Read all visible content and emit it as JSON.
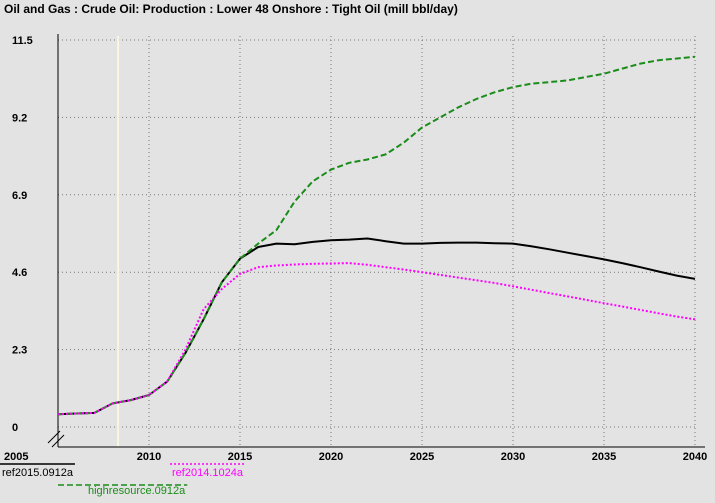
{
  "title": "Oil and Gas : Crude Oil: Production : Lower 48 Onshore : Tight Oil (mill bbl/day)",
  "chart_data": {
    "type": "line",
    "title": "Oil and Gas : Crude Oil: Production : Lower 48 Onshore : Tight Oil (mill bbl/day)",
    "xlabel": "",
    "ylabel": "",
    "xlim": [
      2005,
      2040
    ],
    "ylim": [
      0,
      11.5
    ],
    "x_ticks": [
      "2005",
      "2010",
      "2015",
      "2020",
      "2025",
      "2030",
      "2035",
      "2040"
    ],
    "y_ticks": [
      "0",
      "2.3",
      "4.6",
      "6.9",
      "9.2",
      "11.5"
    ],
    "grid": true,
    "background": "#e3e3e3",
    "reference_line_x": 2008.3,
    "series": [
      {
        "name": "ref2015.0912a",
        "color": "#000000",
        "style": "solid",
        "x": [
          2005,
          2006,
          2007,
          2008,
          2009,
          2010,
          2011,
          2012,
          2013,
          2014,
          2015,
          2016,
          2017,
          2018,
          2019,
          2020,
          2021,
          2022,
          2023,
          2024,
          2025,
          2026,
          2027,
          2028,
          2029,
          2030,
          2031,
          2032,
          2033,
          2034,
          2035,
          2036,
          2037,
          2038,
          2039,
          2040
        ],
        "values": [
          0.38,
          0.4,
          0.42,
          0.7,
          0.8,
          0.95,
          1.35,
          2.2,
          3.2,
          4.3,
          5.0,
          5.35,
          5.45,
          5.43,
          5.5,
          5.55,
          5.57,
          5.6,
          5.52,
          5.45,
          5.45,
          5.47,
          5.48,
          5.48,
          5.46,
          5.45,
          5.37,
          5.28,
          5.18,
          5.08,
          4.98,
          4.87,
          4.75,
          4.62,
          4.5,
          4.4
        ]
      },
      {
        "name": "highresource.0912a",
        "color": "#1a8c1a",
        "style": "dashed",
        "x": [
          2005,
          2006,
          2007,
          2008,
          2009,
          2010,
          2011,
          2012,
          2013,
          2014,
          2015,
          2016,
          2017,
          2018,
          2019,
          2020,
          2021,
          2022,
          2023,
          2024,
          2025,
          2026,
          2027,
          2028,
          2029,
          2030,
          2031,
          2032,
          2033,
          2034,
          2035,
          2036,
          2037,
          2038,
          2039,
          2040
        ],
        "values": [
          0.38,
          0.4,
          0.42,
          0.7,
          0.8,
          0.95,
          1.35,
          2.2,
          3.2,
          4.3,
          5.0,
          5.45,
          5.85,
          6.7,
          7.3,
          7.65,
          7.85,
          7.95,
          8.1,
          8.45,
          8.9,
          9.2,
          9.5,
          9.75,
          9.95,
          10.1,
          10.2,
          10.25,
          10.3,
          10.4,
          10.5,
          10.65,
          10.8,
          10.9,
          10.95,
          11.0
        ]
      },
      {
        "name": "ref2014.1024a",
        "color": "#ff00ff",
        "style": "dotted",
        "x": [
          2005,
          2006,
          2007,
          2008,
          2009,
          2010,
          2011,
          2012,
          2013,
          2014,
          2015,
          2016,
          2017,
          2018,
          2019,
          2020,
          2021,
          2022,
          2023,
          2024,
          2025,
          2026,
          2027,
          2028,
          2029,
          2030,
          2031,
          2032,
          2033,
          2034,
          2035,
          2036,
          2037,
          2038,
          2039,
          2040
        ],
        "values": [
          0.38,
          0.4,
          0.42,
          0.7,
          0.8,
          0.95,
          1.35,
          2.3,
          3.5,
          4.1,
          4.55,
          4.75,
          4.8,
          4.83,
          4.85,
          4.86,
          4.87,
          4.82,
          4.75,
          4.68,
          4.6,
          4.52,
          4.44,
          4.36,
          4.28,
          4.18,
          4.08,
          3.98,
          3.88,
          3.78,
          3.68,
          3.58,
          3.48,
          3.38,
          3.28,
          3.2
        ]
      }
    ],
    "legend": [
      {
        "label": "ref2015.0912a",
        "color": "#000000",
        "style": "solid"
      },
      {
        "label": "ref2014.1024a",
        "color": "#ff00ff",
        "style": "dotted"
      },
      {
        "label": "highresource.0912a",
        "color": "#1a8c1a",
        "style": "dashed"
      }
    ]
  }
}
